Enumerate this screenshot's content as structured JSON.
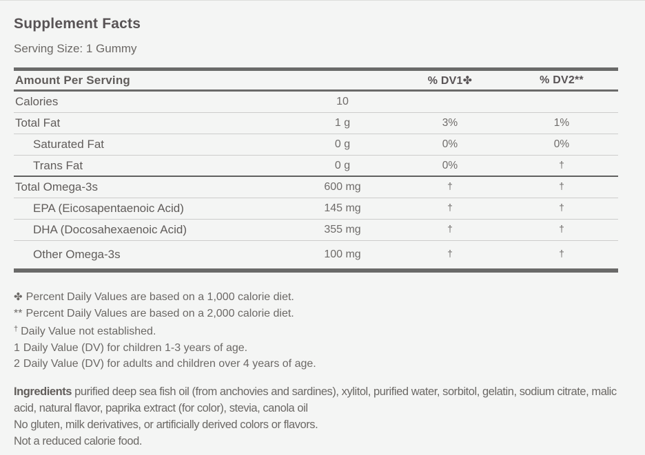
{
  "page": {
    "title": "Supplement Facts",
    "serving_size": "Serving Size: 1 Gummy"
  },
  "table": {
    "headers": {
      "name": "Amount Per Serving",
      "dv1": "% DV1✤",
      "dv2": "% DV2**"
    },
    "rows": [
      {
        "name": "Calories",
        "amount": "10",
        "dv1": "",
        "dv2": "",
        "indent": false,
        "divider": "thin"
      },
      {
        "name": "Total Fat",
        "amount": "1 g",
        "dv1": "3%",
        "dv2": "1%",
        "indent": false,
        "divider": "thin"
      },
      {
        "name": "Saturated Fat",
        "amount": "0 g",
        "dv1": "0%",
        "dv2": "0%",
        "indent": true,
        "divider": "thin"
      },
      {
        "name": "Trans Fat",
        "amount": "0 g",
        "dv1": "0%",
        "dv2": "†",
        "indent": true,
        "divider": "medium"
      },
      {
        "name": "Total Omega-3s",
        "amount": "600 mg",
        "dv1": "†",
        "dv2": "†",
        "indent": false,
        "divider": "thin"
      },
      {
        "name": "EPA (Eicosapentaenoic Acid)",
        "amount": "145 mg",
        "dv1": "†",
        "dv2": "†",
        "indent": true,
        "divider": "thin"
      },
      {
        "name": "DHA (Docosahexaenoic Acid)",
        "amount": "355 mg",
        "dv1": "†",
        "dv2": "†",
        "indent": true,
        "divider": "thin"
      },
      {
        "name": "Other Omega-3s",
        "amount": "100 mg",
        "dv1": "†",
        "dv2": "†",
        "indent": true,
        "divider": "none"
      }
    ]
  },
  "footnotes": [
    {
      "marker": "✤",
      "text": "Percent Daily Values are based on a 1,000 calorie diet."
    },
    {
      "marker": "**",
      "text": "Percent Daily Values are based on a 2,000 calorie diet."
    },
    {
      "marker": "†",
      "text": "Daily Value not established."
    },
    {
      "marker": "1",
      "text": "Daily Value (DV) for children 1-3 years of age."
    },
    {
      "marker": "2",
      "text": "Daily Value (DV) for adults and children over 4 years of age."
    }
  ],
  "ingredients": {
    "label": "Ingredients",
    "text": "purified deep sea fish oil (from anchovies and sardines), xylitol, purified water, sorbitol, gelatin, sodium citrate, malic acid, natural flavor, paprika extract (for color), stevia, canola oil"
  },
  "notes": [
    "No gluten, milk derivatives, or artificially derived colors or flavors.",
    "Not a reduced calorie food."
  ],
  "colors": {
    "background": "#f4f5f4",
    "text_dark": "#585355",
    "text_body": "#6b6865",
    "bar": "#6a6a69",
    "line_thin": "#cccccb",
    "line_medium": "#5f5f5e"
  }
}
